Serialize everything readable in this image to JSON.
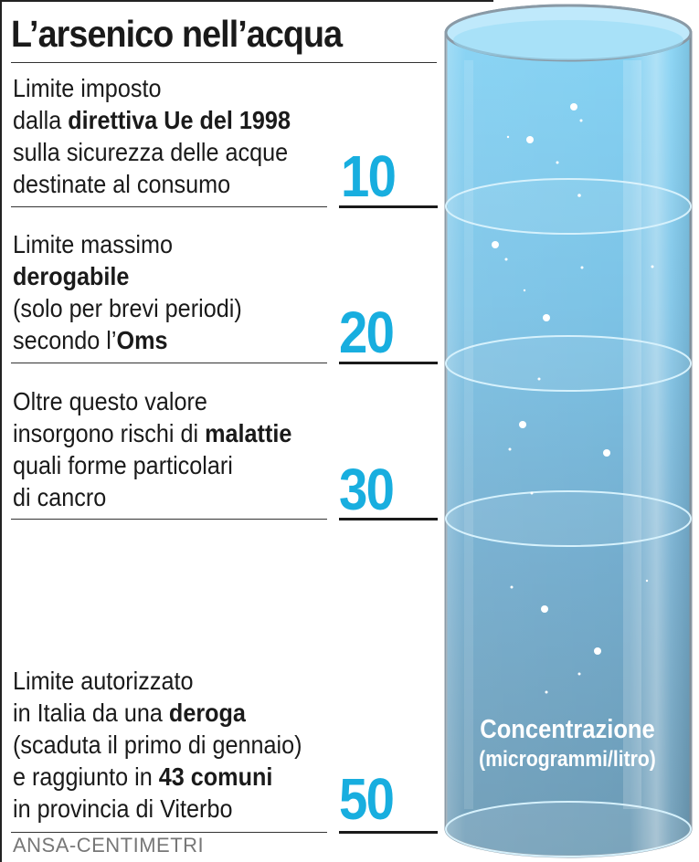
{
  "title": "L’arsenico nell’acqua",
  "source": "ANSA-CENTIMETRI",
  "cylinder_label": {
    "line1": "Concentrazione",
    "line2": "(microgrammi/litro)"
  },
  "levels": [
    {
      "value": "10",
      "lines": [
        [
          {
            "t": "Limite imposto"
          }
        ],
        [
          {
            "t": "dalla "
          },
          {
            "t": "direttiva Ue del 1998",
            "b": true
          }
        ],
        [
          {
            "t": "sulla sicurezza delle acque"
          }
        ],
        [
          {
            "t": "destinate al consumo"
          }
        ]
      ]
    },
    {
      "value": "20",
      "lines": [
        [
          {
            "t": "Limite massimo"
          }
        ],
        [
          {
            "t": "derogabile",
            "b": true
          }
        ],
        [
          {
            "t": "(solo per brevi periodi)"
          }
        ],
        [
          {
            "t": "secondo l’"
          },
          {
            "t": "Oms",
            "b": true
          }
        ]
      ]
    },
    {
      "value": "30",
      "lines": [
        [
          {
            "t": "Oltre questo valore"
          }
        ],
        [
          {
            "t": "insorgono rischi di "
          },
          {
            "t": "malattie",
            "b": true
          }
        ],
        [
          {
            "t": "quali forme particolari"
          }
        ],
        [
          {
            "t": "di cancro"
          }
        ]
      ]
    },
    {
      "value": "50",
      "lines": [
        [
          {
            "t": "Limite autorizzato"
          }
        ],
        [
          {
            "t": "in Italia da una "
          },
          {
            "t": "deroga",
            "b": true
          }
        ],
        [
          {
            "t": "(scaduta il primo di gennaio)"
          }
        ],
        [
          {
            "t": "e raggiunto in "
          },
          {
            "t": "43 comuni",
            "b": true
          }
        ],
        [
          {
            "t": "in provincia di Viterbo"
          }
        ]
      ]
    }
  ],
  "colors": {
    "accent": "#18aedf",
    "water_top": "#86d4f5",
    "water_bottom": "#6c9ab4"
  }
}
